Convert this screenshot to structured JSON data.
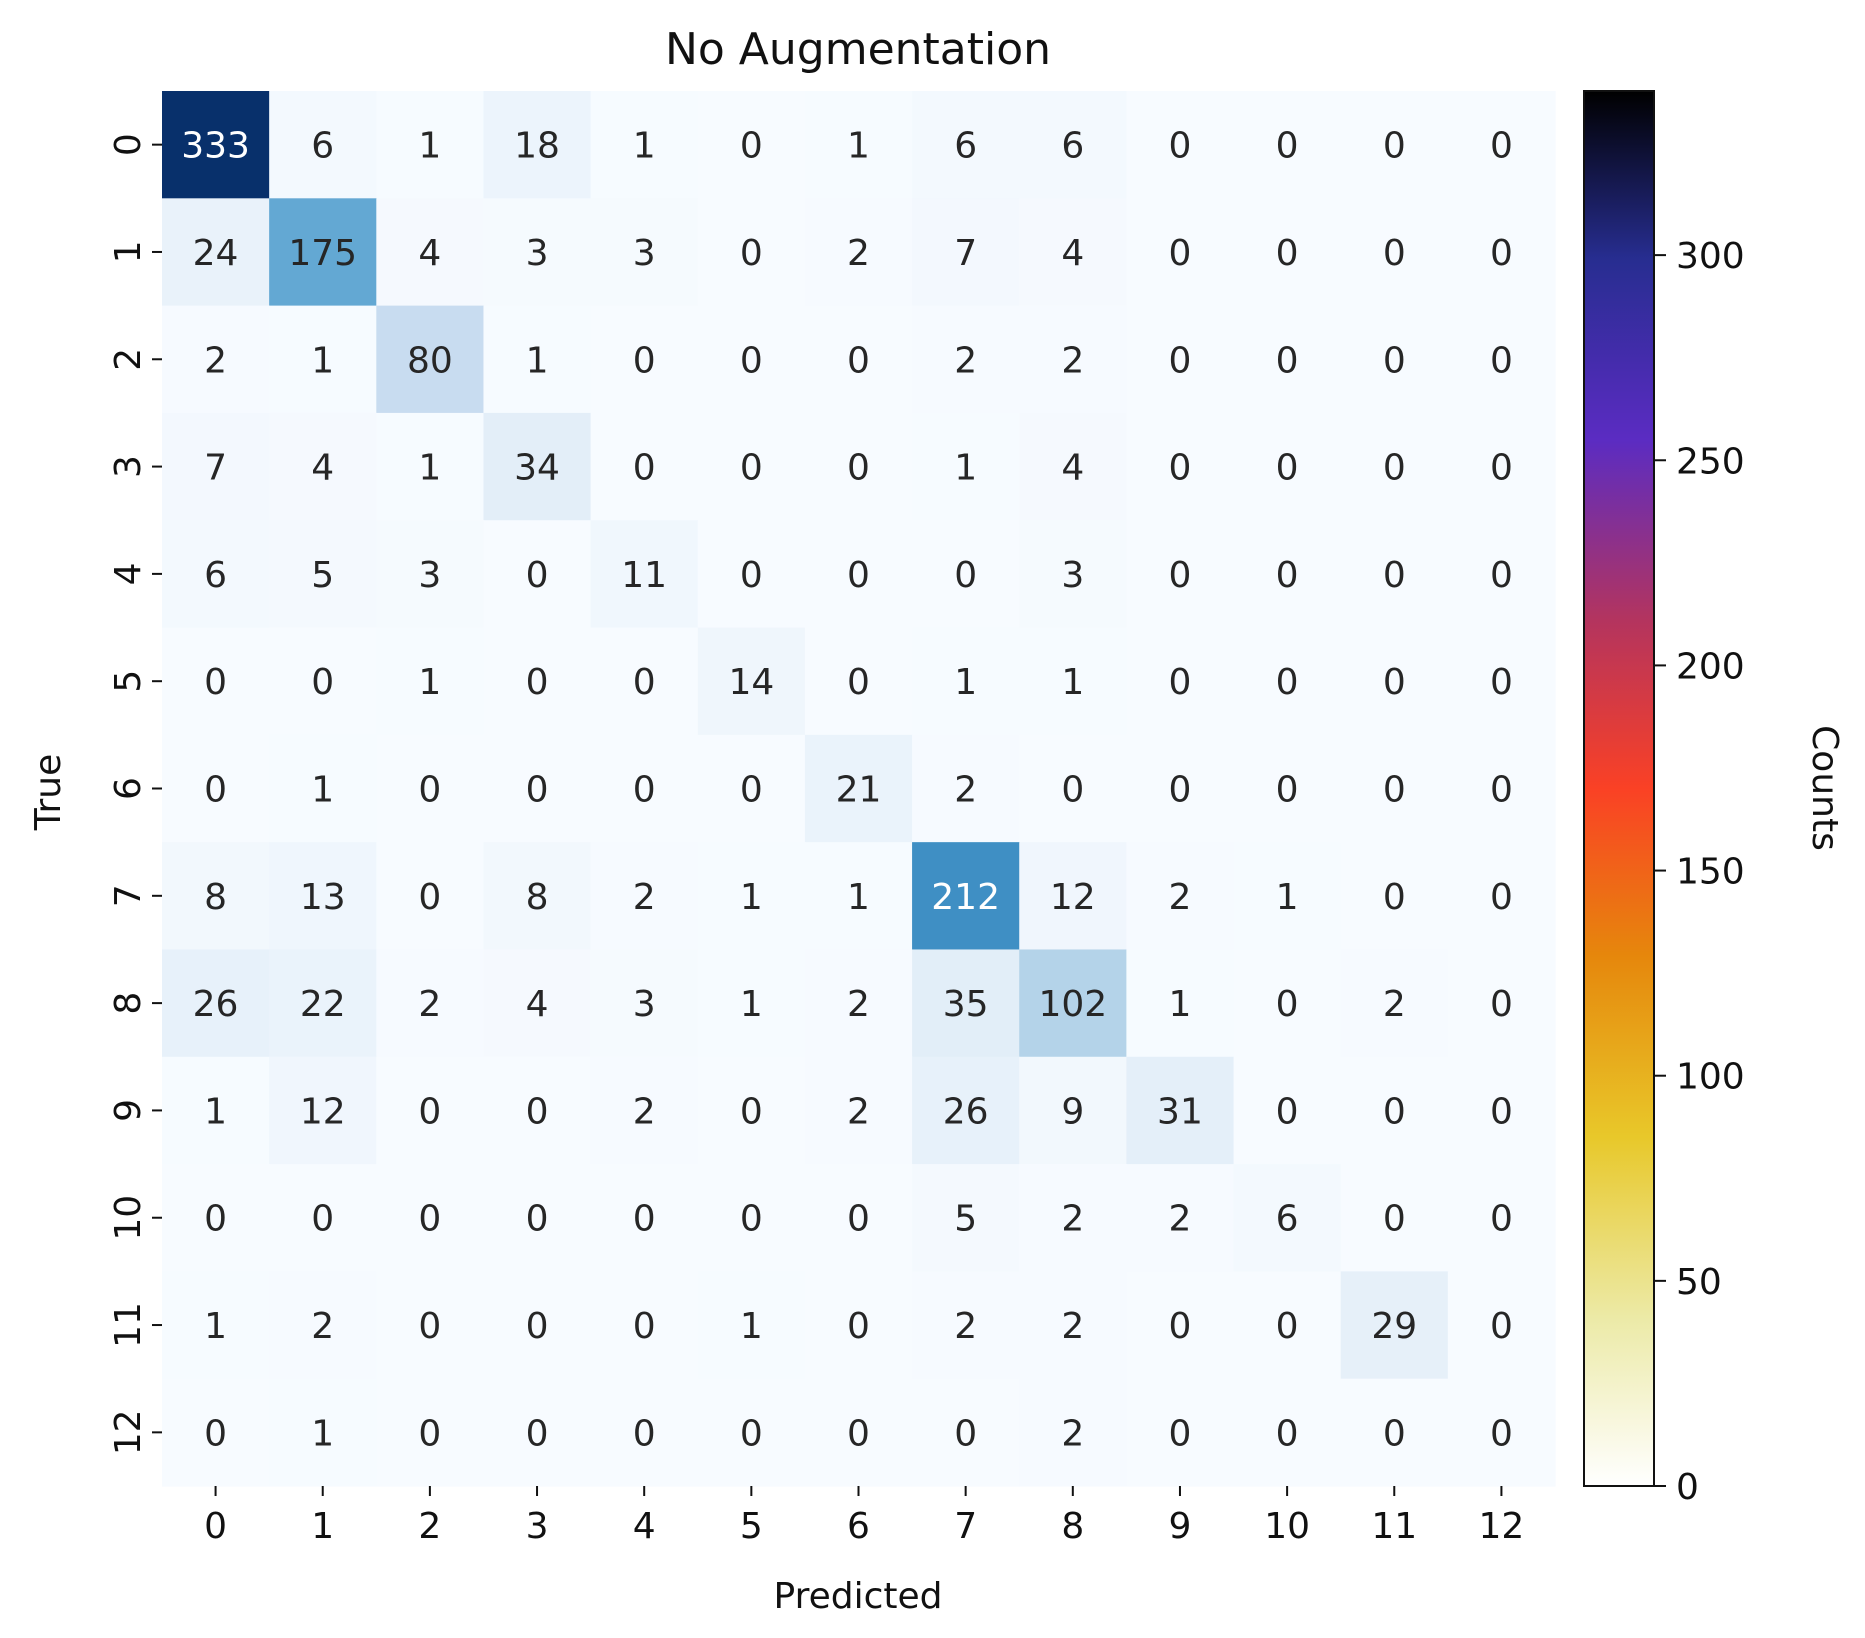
{
  "chart_data": {
    "type": "heatmap",
    "title": "No Augmentation",
    "xlabel": "Predicted",
    "ylabel": "True",
    "x_categories": [
      "0",
      "1",
      "2",
      "3",
      "4",
      "5",
      "6",
      "7",
      "8",
      "9",
      "10",
      "11",
      "12"
    ],
    "y_categories": [
      "0",
      "1",
      "2",
      "3",
      "4",
      "5",
      "6",
      "7",
      "8",
      "9",
      "10",
      "11",
      "12"
    ],
    "values": [
      [
        333,
        6,
        1,
        18,
        1,
        0,
        1,
        6,
        6,
        0,
        0,
        0,
        0
      ],
      [
        24,
        175,
        4,
        3,
        3,
        0,
        2,
        7,
        4,
        0,
        0,
        0,
        0
      ],
      [
        2,
        1,
        80,
        1,
        0,
        0,
        0,
        2,
        2,
        0,
        0,
        0,
        0
      ],
      [
        7,
        4,
        1,
        34,
        0,
        0,
        0,
        1,
        4,
        0,
        0,
        0,
        0
      ],
      [
        6,
        5,
        3,
        0,
        11,
        0,
        0,
        0,
        3,
        0,
        0,
        0,
        0
      ],
      [
        0,
        0,
        1,
        0,
        0,
        14,
        0,
        1,
        1,
        0,
        0,
        0,
        0
      ],
      [
        0,
        1,
        0,
        0,
        0,
        0,
        21,
        2,
        0,
        0,
        0,
        0,
        0
      ],
      [
        8,
        13,
        0,
        8,
        2,
        1,
        1,
        212,
        12,
        2,
        1,
        0,
        0
      ],
      [
        26,
        22,
        2,
        4,
        3,
        1,
        2,
        35,
        102,
        1,
        0,
        2,
        0
      ],
      [
        1,
        12,
        0,
        0,
        2,
        0,
        2,
        26,
        9,
        31,
        0,
        0,
        0
      ],
      [
        0,
        0,
        0,
        0,
        0,
        0,
        0,
        5,
        2,
        2,
        6,
        0,
        0
      ],
      [
        1,
        2,
        0,
        0,
        0,
        1,
        0,
        2,
        2,
        0,
        0,
        29,
        0
      ],
      [
        0,
        1,
        0,
        0,
        0,
        0,
        0,
        0,
        2,
        0,
        0,
        0,
        0
      ]
    ],
    "vmin": 0,
    "vmax": 340,
    "cell_colormap": "Blues",
    "colorbar": {
      "label": "Counts",
      "ticks": [
        0,
        50,
        100,
        150,
        200,
        250,
        300
      ],
      "colormap": "CMRmap_r",
      "range": [
        0,
        340
      ]
    }
  }
}
